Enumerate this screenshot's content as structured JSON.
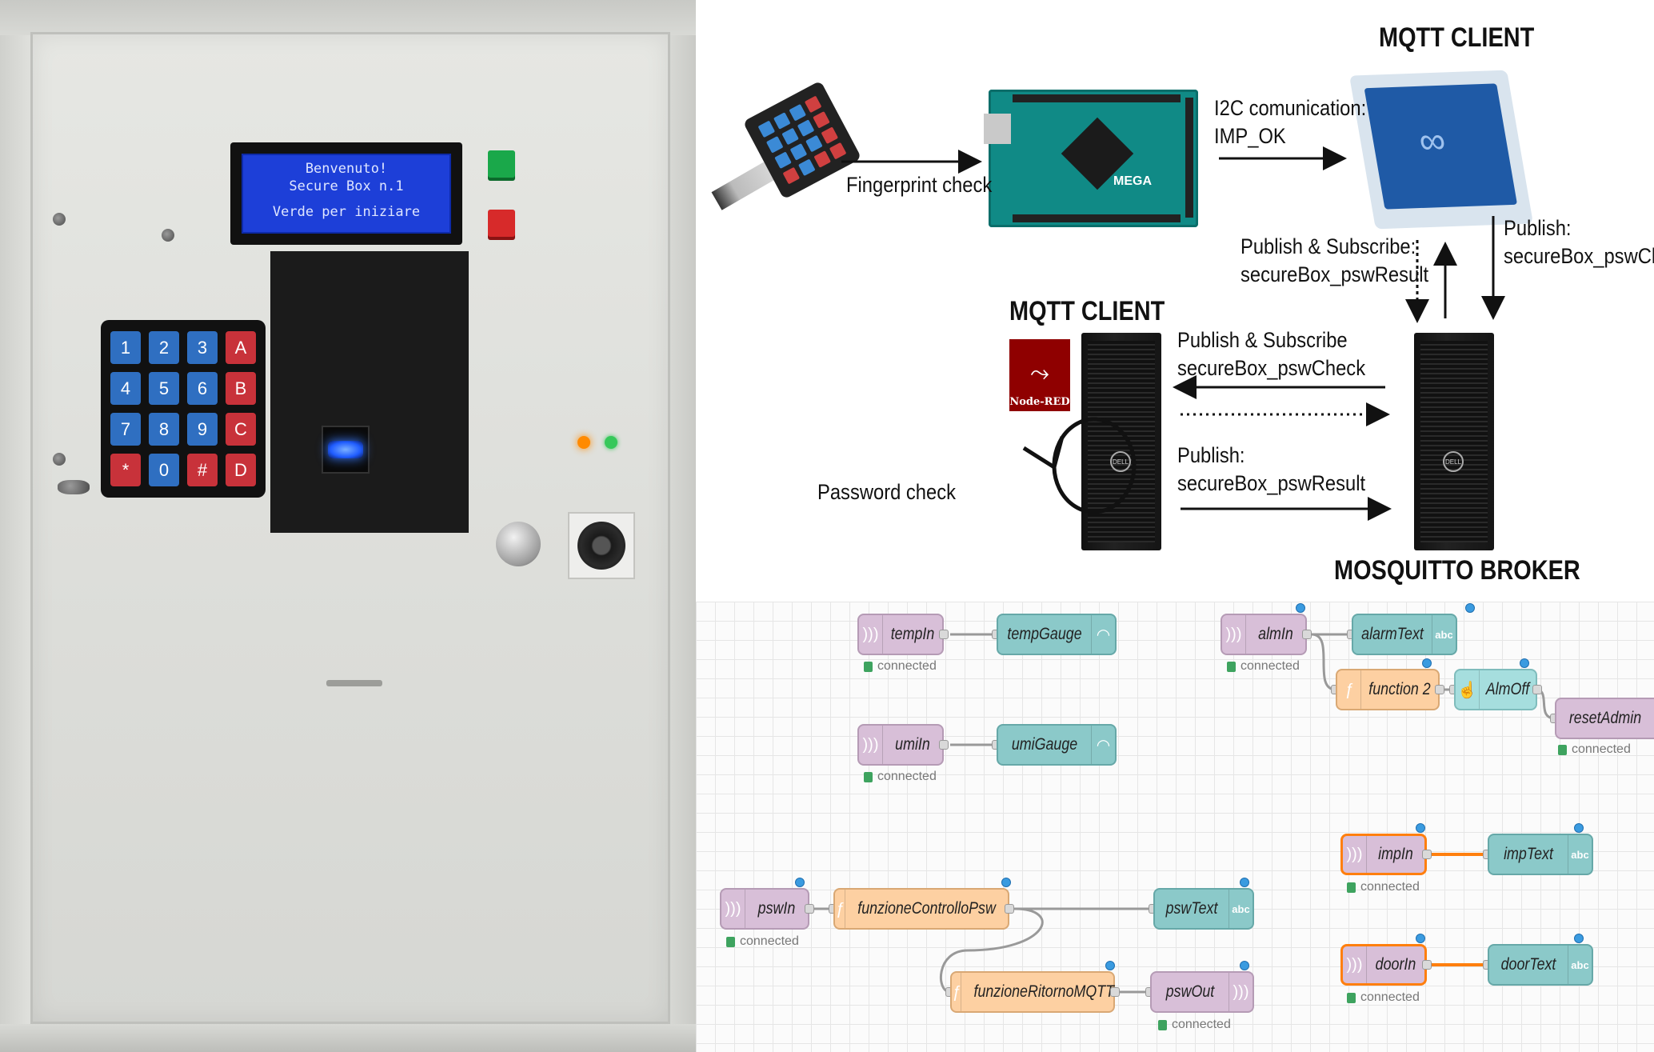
{
  "photo": {
    "lcd_lines": [
      "Benvenuto!",
      "Secure Box n.1",
      "Verde per iniziare"
    ],
    "keypad_keys": [
      {
        "label": "1",
        "color": "blue"
      },
      {
        "label": "2",
        "color": "blue"
      },
      {
        "label": "3",
        "color": "blue"
      },
      {
        "label": "A",
        "color": "red"
      },
      {
        "label": "4",
        "color": "blue"
      },
      {
        "label": "5",
        "color": "blue"
      },
      {
        "label": "6",
        "color": "blue"
      },
      {
        "label": "B",
        "color": "red"
      },
      {
        "label": "7",
        "color": "blue"
      },
      {
        "label": "8",
        "color": "blue"
      },
      {
        "label": "9",
        "color": "blue"
      },
      {
        "label": "C",
        "color": "red"
      },
      {
        "label": "*",
        "color": "red"
      },
      {
        "label": "0",
        "color": "blue"
      },
      {
        "label": "#",
        "color": "red"
      },
      {
        "label": "D",
        "color": "red"
      }
    ],
    "colors": {
      "green_button": "#1aa84a",
      "red_button": "#d72a2a",
      "led_orange": "#ff8a00",
      "led_green": "#36c85a",
      "lcd": "#1d3fd8"
    }
  },
  "diagram": {
    "mqtt_client_top": "MQTT CLIENT",
    "mqtt_client_mid": "MQTT CLIENT",
    "mosquitto_broker": "MOSQUITTO BROKER",
    "fingerprint_check": "Fingerprint check",
    "i2c_line1": "I2C comunication:",
    "i2c_line2": "IMP_OK",
    "pubsub_result_line1": "Publish & Subscribe:",
    "pubsub_result_line2": "secureBox_pswResult",
    "publish_check_line1": "Publish:",
    "publish_check_line2": "secureBox_pswChe",
    "pubsub_check_line1": "Publish & Subscribe",
    "pubsub_check_line2": "secureBox_pswCheck",
    "publish_result_line1": "Publish:",
    "publish_result_line2": "secureBox_pswResult",
    "password_check": "Password check",
    "nodered_label": "Node-RED",
    "arduino_logo": "MEGA"
  },
  "flow": {
    "nodes": {
      "tempIn": "tempIn",
      "tempGauge": "tempGauge",
      "umiIn": "umiIn",
      "umiGauge": "umiGauge",
      "almIn": "almIn",
      "alarmText": "alarmText",
      "function2": "function 2",
      "almOff": "AlmOff",
      "resetAdmin": "resetAdmin",
      "impIn": "impIn",
      "impText": "impText",
      "doorIn": "doorIn",
      "doorText": "doorText",
      "pswIn": "pswIn",
      "funzioneControlloPsw": "funzioneControlloPsw",
      "pswText": "pswText",
      "funzioneRitornoMQTT": "funzioneRitornoMQTT",
      "pswOut": "pswOut"
    },
    "status_connected": "connected",
    "abc": "abc",
    "colors": {
      "mqtt": "#d8bfd8",
      "ui": "#8bc9c9",
      "function": "#fdd0a2",
      "selected_wire": "#ff7f0e",
      "status": "#3ea35f"
    }
  }
}
